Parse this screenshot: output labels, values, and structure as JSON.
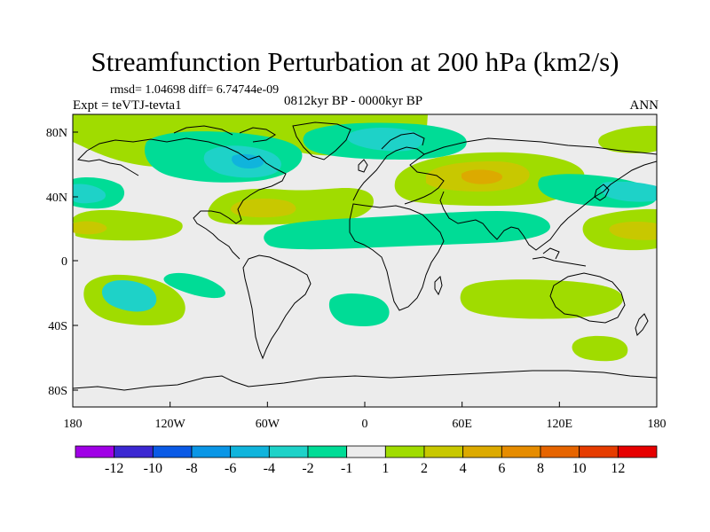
{
  "title": "Streamfunction Perturbation at 200 hPa (km2/s)",
  "stats": "rmsd= 1.04698 diff= 6.74744e-09",
  "experiment": "Expt = teVTJ-tevta1",
  "period": "0812kyr BP - 0000kyr BP",
  "season": "ANN",
  "map": {
    "lat_ticks": [
      "80N",
      "40N",
      "0",
      "40S",
      "80S"
    ],
    "lon_ticks": [
      "180",
      "120W",
      "60W",
      "0",
      "60E",
      "120E",
      "180"
    ],
    "colors": {
      "background": "#ececec",
      "neg1": "#00dc96",
      "neg2": "#1ed2c8",
      "neg3": "#10b4dc",
      "pos1": "#a0dc00",
      "pos2": "#c8c800",
      "pos3": "#dcaa00",
      "coast": "#000000"
    }
  },
  "colorbar": {
    "colors": [
      "#a000e6",
      "#3c28d2",
      "#0a5ae6",
      "#0a96e6",
      "#10b4dc",
      "#1ed2c8",
      "#00dc96",
      "#ececec",
      "#a0dc00",
      "#c8c800",
      "#dcaa00",
      "#e68c00",
      "#e66400",
      "#e63c00",
      "#e60000"
    ],
    "labels": [
      "-12",
      "-10",
      "-8",
      "-6",
      "-4",
      "-2",
      "-1",
      "1",
      "2",
      "4",
      "6",
      "8",
      "10",
      "12"
    ]
  }
}
